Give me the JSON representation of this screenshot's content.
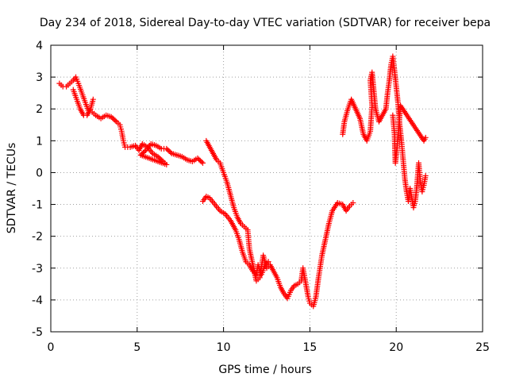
{
  "chart_data": {
    "type": "scatter",
    "title": "Day 234 of 2018, Sidereal Day-to-day VTEC variation (SDTVAR) for receiver bepa",
    "xlabel": "GPS time / hours",
    "ylabel": "SDTVAR / TECUs",
    "xlim": [
      0,
      25
    ],
    "ylim": [
      -5,
      4
    ],
    "xticks": [
      "0",
      "5",
      "10",
      "15",
      "20",
      "25"
    ],
    "yticks": [
      "4",
      "3",
      "2",
      "1",
      "0",
      "-1",
      "-2",
      "-3",
      "-4",
      "-5"
    ],
    "grid": true,
    "marker": "+",
    "series": [
      {
        "name": "SDTVAR",
        "color": "#ff0000",
        "points": [
          [
            0.5,
            2.8
          ],
          [
            0.7,
            2.7
          ],
          [
            0.9,
            2.7
          ],
          [
            1.1,
            2.8
          ],
          [
            1.3,
            2.9
          ],
          [
            1.45,
            3.0
          ],
          [
            1.6,
            2.8
          ],
          [
            1.8,
            2.5
          ],
          [
            2.0,
            2.2
          ],
          [
            2.2,
            1.9
          ],
          [
            2.4,
            1.9
          ],
          [
            2.6,
            1.8
          ],
          [
            2.9,
            1.7
          ],
          [
            3.2,
            1.8
          ],
          [
            3.5,
            1.75
          ],
          [
            3.8,
            1.6
          ],
          [
            4.0,
            1.5
          ],
          [
            4.1,
            1.3
          ],
          [
            4.2,
            1.0
          ],
          [
            4.3,
            0.8
          ],
          [
            4.6,
            0.8
          ],
          [
            4.9,
            0.85
          ],
          [
            5.1,
            0.7
          ],
          [
            5.3,
            0.9
          ],
          [
            5.6,
            0.8
          ],
          [
            5.9,
            0.6
          ],
          [
            6.2,
            0.5
          ],
          [
            6.5,
            0.35
          ],
          [
            6.7,
            0.25
          ],
          [
            5.2,
            0.55
          ],
          [
            5.5,
            0.7
          ],
          [
            5.8,
            0.9
          ],
          [
            6.1,
            0.85
          ],
          [
            6.4,
            0.75
          ],
          [
            6.7,
            0.75
          ],
          [
            7.0,
            0.6
          ],
          [
            7.3,
            0.55
          ],
          [
            7.6,
            0.5
          ],
          [
            7.9,
            0.4
          ],
          [
            8.2,
            0.35
          ],
          [
            8.5,
            0.45
          ],
          [
            8.8,
            0.3
          ],
          [
            1.3,
            2.6
          ],
          [
            1.5,
            2.3
          ],
          [
            1.7,
            2.0
          ],
          [
            1.9,
            1.8
          ],
          [
            2.1,
            1.8
          ],
          [
            2.3,
            2.0
          ],
          [
            2.45,
            2.3
          ],
          [
            8.8,
            -0.9
          ],
          [
            9.0,
            -0.75
          ],
          [
            9.2,
            -0.8
          ],
          [
            9.5,
            -1.0
          ],
          [
            9.8,
            -1.2
          ],
          [
            10.1,
            -1.3
          ],
          [
            10.4,
            -1.5
          ],
          [
            10.7,
            -1.8
          ],
          [
            10.9,
            -2.1
          ],
          [
            11.1,
            -2.5
          ],
          [
            11.3,
            -2.8
          ],
          [
            11.5,
            -2.9
          ],
          [
            11.7,
            -3.1
          ],
          [
            11.9,
            -3.2
          ],
          [
            12.0,
            -2.9
          ],
          [
            12.2,
            -3.2
          ],
          [
            12.4,
            -2.9
          ],
          [
            12.6,
            -2.8
          ],
          [
            9.0,
            1.0
          ],
          [
            9.2,
            0.8
          ],
          [
            9.4,
            0.6
          ],
          [
            9.6,
            0.4
          ],
          [
            9.8,
            0.3
          ],
          [
            10.0,
            0.0
          ],
          [
            10.2,
            -0.3
          ],
          [
            10.4,
            -0.7
          ],
          [
            10.6,
            -1.1
          ],
          [
            10.8,
            -1.4
          ],
          [
            11.0,
            -1.6
          ],
          [
            11.2,
            -1.7
          ],
          [
            11.4,
            -1.8
          ],
          [
            11.5,
            -2.4
          ],
          [
            11.7,
            -2.9
          ],
          [
            11.9,
            -3.4
          ],
          [
            12.1,
            -3.3
          ],
          [
            12.3,
            -2.6
          ],
          [
            12.5,
            -3.0
          ],
          [
            12.7,
            -2.9
          ],
          [
            12.9,
            -3.1
          ],
          [
            13.1,
            -3.3
          ],
          [
            13.3,
            -3.6
          ],
          [
            13.5,
            -3.8
          ],
          [
            13.7,
            -3.95
          ],
          [
            13.9,
            -3.7
          ],
          [
            14.1,
            -3.55
          ],
          [
            14.3,
            -3.5
          ],
          [
            14.5,
            -3.4
          ],
          [
            14.6,
            -3.0
          ],
          [
            14.7,
            -3.3
          ],
          [
            14.9,
            -3.9
          ],
          [
            15.0,
            -4.1
          ],
          [
            15.2,
            -4.2
          ],
          [
            15.35,
            -3.9
          ],
          [
            15.5,
            -3.3
          ],
          [
            15.7,
            -2.6
          ],
          [
            15.9,
            -2.1
          ],
          [
            16.1,
            -1.6
          ],
          [
            16.3,
            -1.2
          ],
          [
            16.6,
            -0.95
          ],
          [
            16.9,
            -1.0
          ],
          [
            17.1,
            -1.2
          ],
          [
            17.3,
            -1.05
          ],
          [
            17.5,
            -0.95
          ],
          [
            16.9,
            1.2
          ],
          [
            17.0,
            1.6
          ],
          [
            17.2,
            2.0
          ],
          [
            17.4,
            2.3
          ],
          [
            17.9,
            1.7
          ],
          [
            18.1,
            1.2
          ],
          [
            18.3,
            1.0
          ],
          [
            18.5,
            1.3
          ],
          [
            18.6,
            2.1
          ],
          [
            18.5,
            2.9
          ],
          [
            18.6,
            3.15
          ],
          [
            18.8,
            2.0
          ],
          [
            19.0,
            1.6
          ],
          [
            19.2,
            1.8
          ],
          [
            19.4,
            2.0
          ],
          [
            19.5,
            2.5
          ],
          [
            19.6,
            2.9
          ],
          [
            19.7,
            3.4
          ],
          [
            19.8,
            3.65
          ],
          [
            19.9,
            3.2
          ],
          [
            20.0,
            2.7
          ],
          [
            20.1,
            2.2
          ],
          [
            20.2,
            1.5
          ],
          [
            20.3,
            1.0
          ],
          [
            20.4,
            0.4
          ],
          [
            20.5,
            -0.2
          ],
          [
            20.6,
            -0.6
          ],
          [
            20.7,
            -0.9
          ],
          [
            20.8,
            -0.5
          ],
          [
            20.9,
            -0.8
          ],
          [
            21.0,
            -1.1
          ],
          [
            21.1,
            -0.9
          ],
          [
            21.2,
            -0.4
          ],
          [
            21.3,
            0.3
          ],
          [
            21.4,
            -0.3
          ],
          [
            21.5,
            -0.6
          ],
          [
            21.6,
            -0.4
          ],
          [
            21.7,
            -0.1
          ],
          [
            19.8,
            1.8
          ],
          [
            19.9,
            1.2
          ],
          [
            19.95,
            0.3
          ],
          [
            20.05,
            0.8
          ],
          [
            20.15,
            1.5
          ],
          [
            20.25,
            2.1
          ],
          [
            21.6,
            1.0
          ],
          [
            21.7,
            1.1
          ]
        ]
      }
    ]
  }
}
